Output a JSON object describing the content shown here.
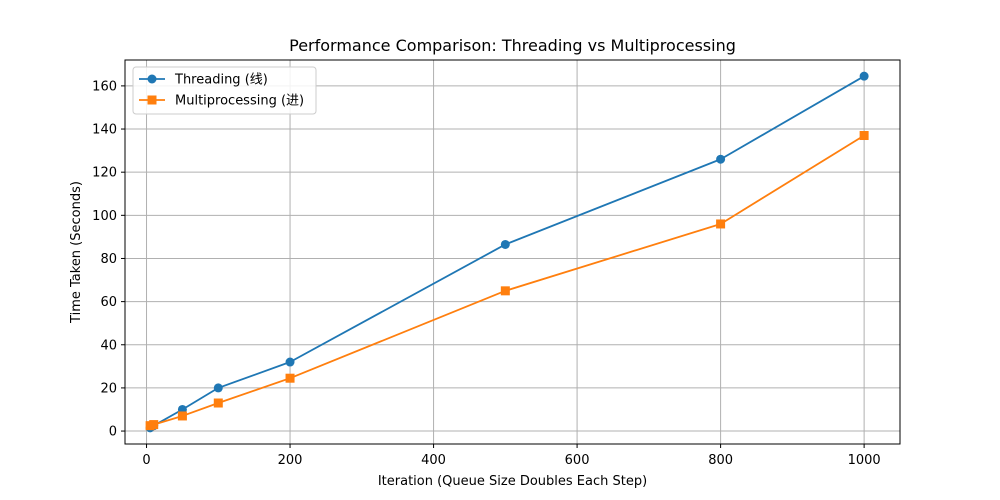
{
  "chart_data": {
    "type": "line",
    "title": "Performance Comparison: Threading vs Multiprocessing",
    "xlabel": "Iteration (Queue Size Doubles Each Step)",
    "ylabel": "Time Taken (Seconds)",
    "xlim": [
      -30,
      1050
    ],
    "ylim": [
      -6,
      172
    ],
    "xticks": [
      0,
      200,
      400,
      600,
      800,
      1000
    ],
    "yticks": [
      0,
      20,
      40,
      60,
      80,
      100,
      120,
      140,
      160
    ],
    "grid": true,
    "legend_position": "upper-left",
    "series": [
      {
        "name": "Threading (线)",
        "marker": "circle",
        "color": "#1f77b4",
        "x": [
          5,
          10,
          50,
          100,
          200,
          500,
          800,
          1000
        ],
        "y": [
          1.5,
          2.5,
          10,
          20,
          32,
          86.5,
          126,
          164.5
        ]
      },
      {
        "name": "Multiprocessing (进)",
        "marker": "square",
        "color": "#ff7f0e",
        "x": [
          5,
          10,
          50,
          100,
          200,
          500,
          800,
          1000
        ],
        "y": [
          2.5,
          3,
          7,
          13,
          24.5,
          65,
          96,
          137
        ]
      }
    ]
  }
}
